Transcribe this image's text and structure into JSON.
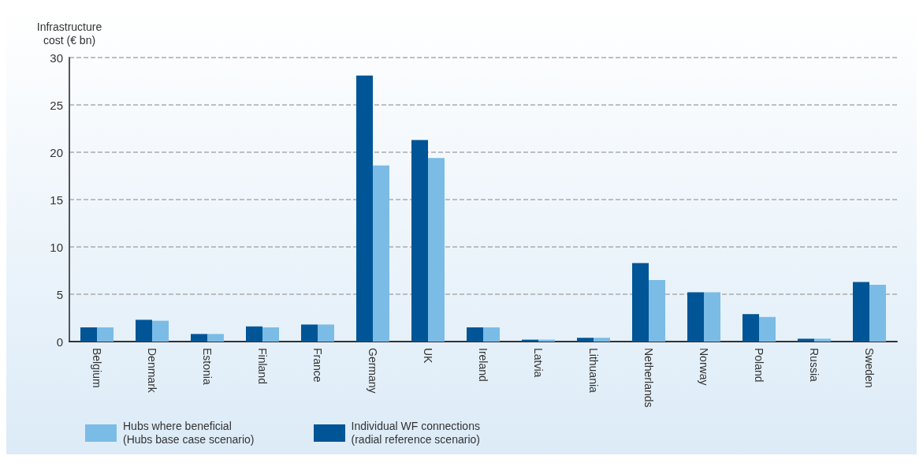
{
  "chart_data": {
    "type": "bar",
    "ylabel": "Infrastructure\ncost (€ bn)",
    "categories": [
      "Belgium",
      "Denmark",
      "Estonia",
      "Finland",
      "France",
      "Germany",
      "UK",
      "Ireland",
      "Latvia",
      "Lithuania",
      "Netherlands",
      "Norway",
      "Poland",
      "Russia",
      "Sweden"
    ],
    "series": [
      {
        "name": "Individual WF connections\n(radial reference scenario)",
        "color": "#005596",
        "values": [
          1.5,
          2.3,
          0.8,
          1.6,
          1.8,
          28.1,
          21.3,
          1.5,
          0.2,
          0.4,
          8.3,
          5.2,
          2.9,
          0.3,
          6.3
        ]
      },
      {
        "name": "Hubs where beneficial\n(Hubs base case scenario)",
        "color": "#7abce6",
        "values": [
          1.5,
          2.2,
          0.8,
          1.5,
          1.8,
          18.6,
          19.4,
          1.5,
          0.2,
          0.4,
          6.5,
          5.2,
          2.6,
          0.3,
          6.0
        ]
      }
    ],
    "ylim": [
      0,
      30
    ],
    "yticks": [
      0,
      5,
      10,
      15,
      20,
      25,
      30
    ],
    "grid": "y",
    "legend": "bottom"
  }
}
